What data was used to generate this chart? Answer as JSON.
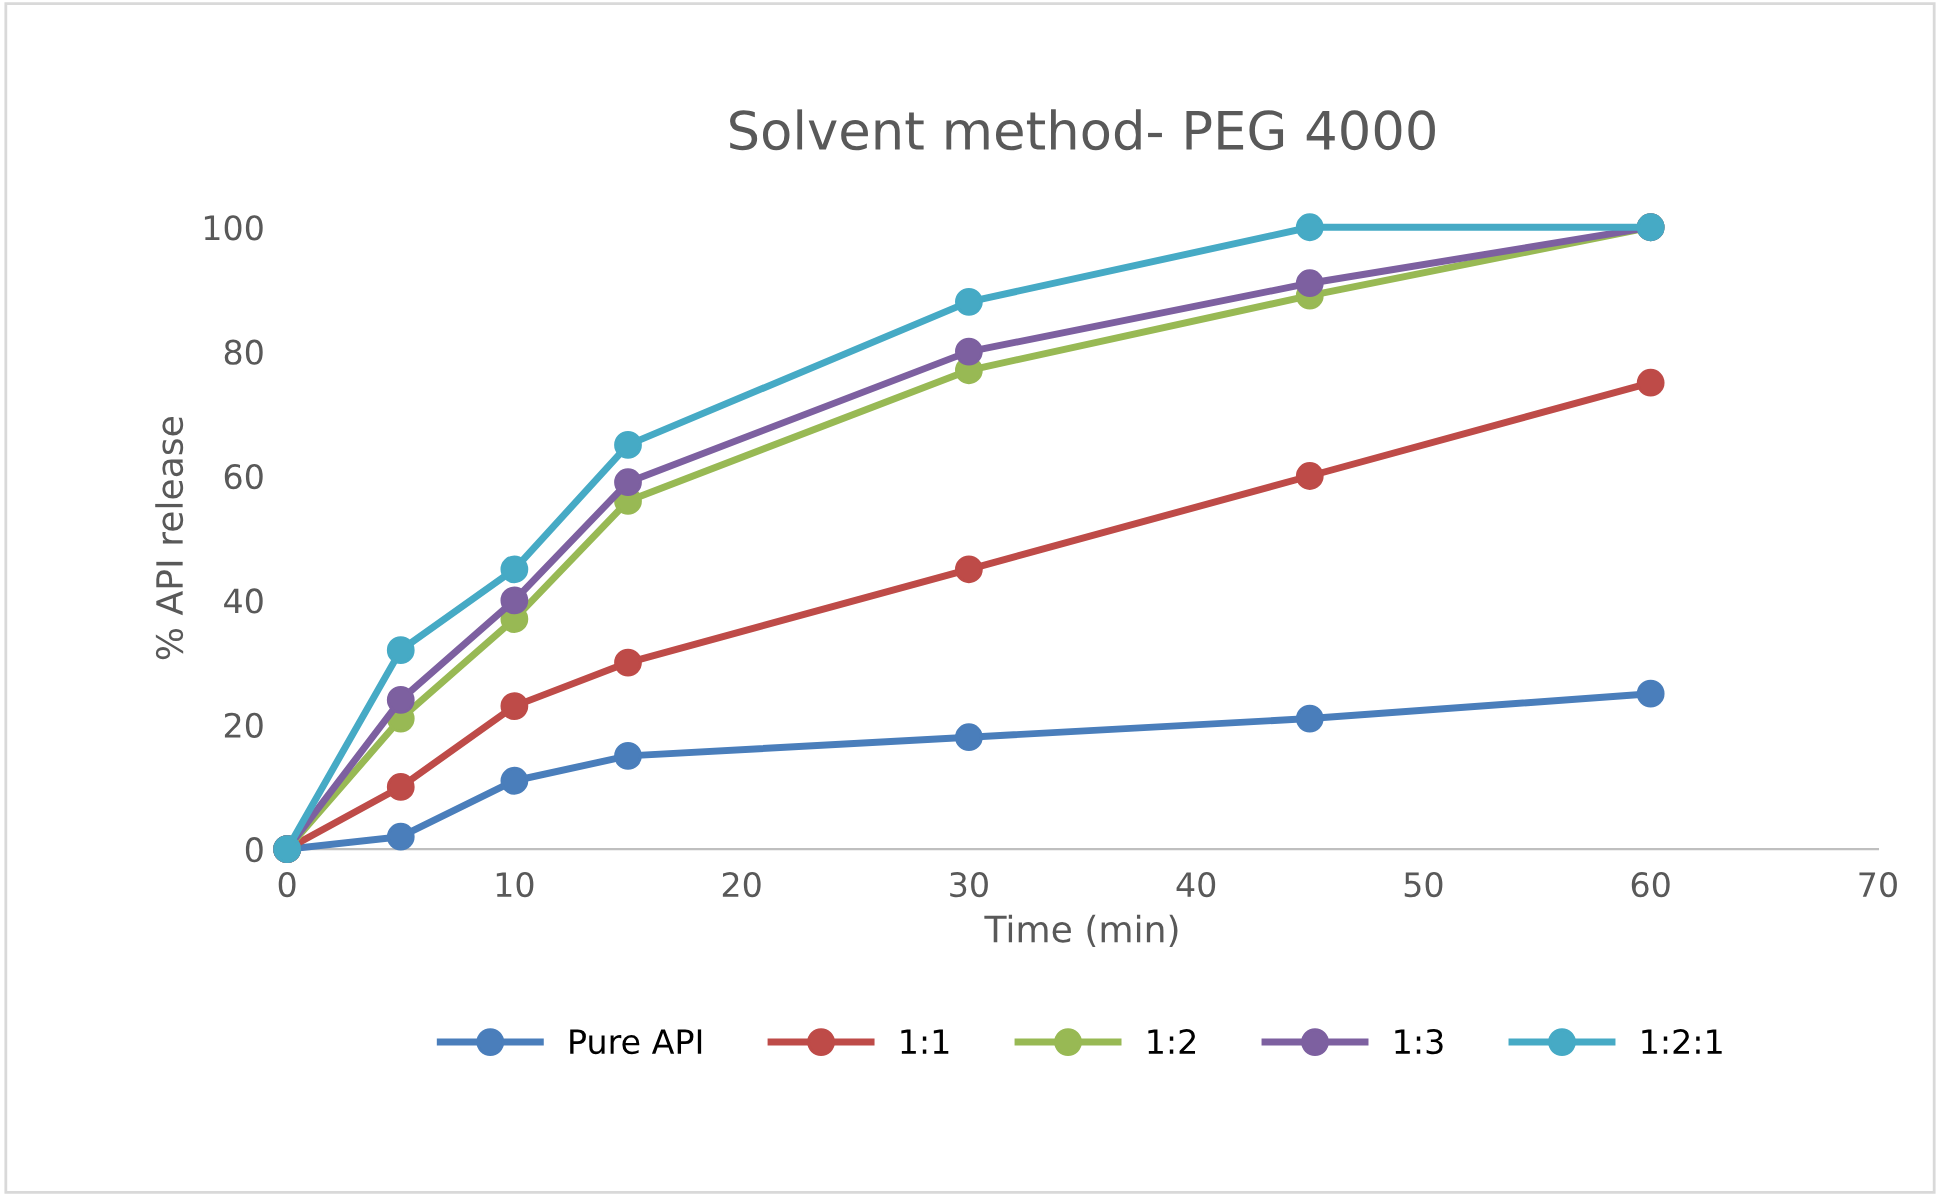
{
  "chart_data": {
    "type": "line",
    "title": "Solvent method- PEG 4000",
    "xlabel": "Time (min)",
    "ylabel": "% API release",
    "x": [
      0,
      5,
      10,
      15,
      30,
      45,
      60
    ],
    "series": [
      {
        "name": "Pure API",
        "color": "#4a7ebb",
        "values": [
          0,
          2,
          11,
          15,
          18,
          21,
          25
        ]
      },
      {
        "name": "1:1",
        "color": "#be4b48",
        "values": [
          0,
          10,
          23,
          30,
          45,
          60,
          75
        ]
      },
      {
        "name": "1:2",
        "color": "#98b954",
        "values": [
          0,
          21,
          37,
          56,
          77,
          89,
          100
        ]
      },
      {
        "name": "1:3",
        "color": "#7d60a0",
        "values": [
          0,
          24,
          40,
          59,
          80,
          91,
          100
        ]
      },
      {
        "name": "1:2:1",
        "color": "#46aac5",
        "values": [
          0,
          32,
          45,
          65,
          88,
          100,
          100
        ]
      }
    ],
    "xlim": [
      0,
      70
    ],
    "xticks": [
      0,
      10,
      20,
      30,
      40,
      50,
      60,
      70
    ],
    "ylim": [
      0,
      100
    ],
    "yticks": [
      0,
      20,
      40,
      60,
      80,
      100
    ],
    "grid": false,
    "legend": "bottom",
    "marker": "circle",
    "line_style": "solid"
  }
}
